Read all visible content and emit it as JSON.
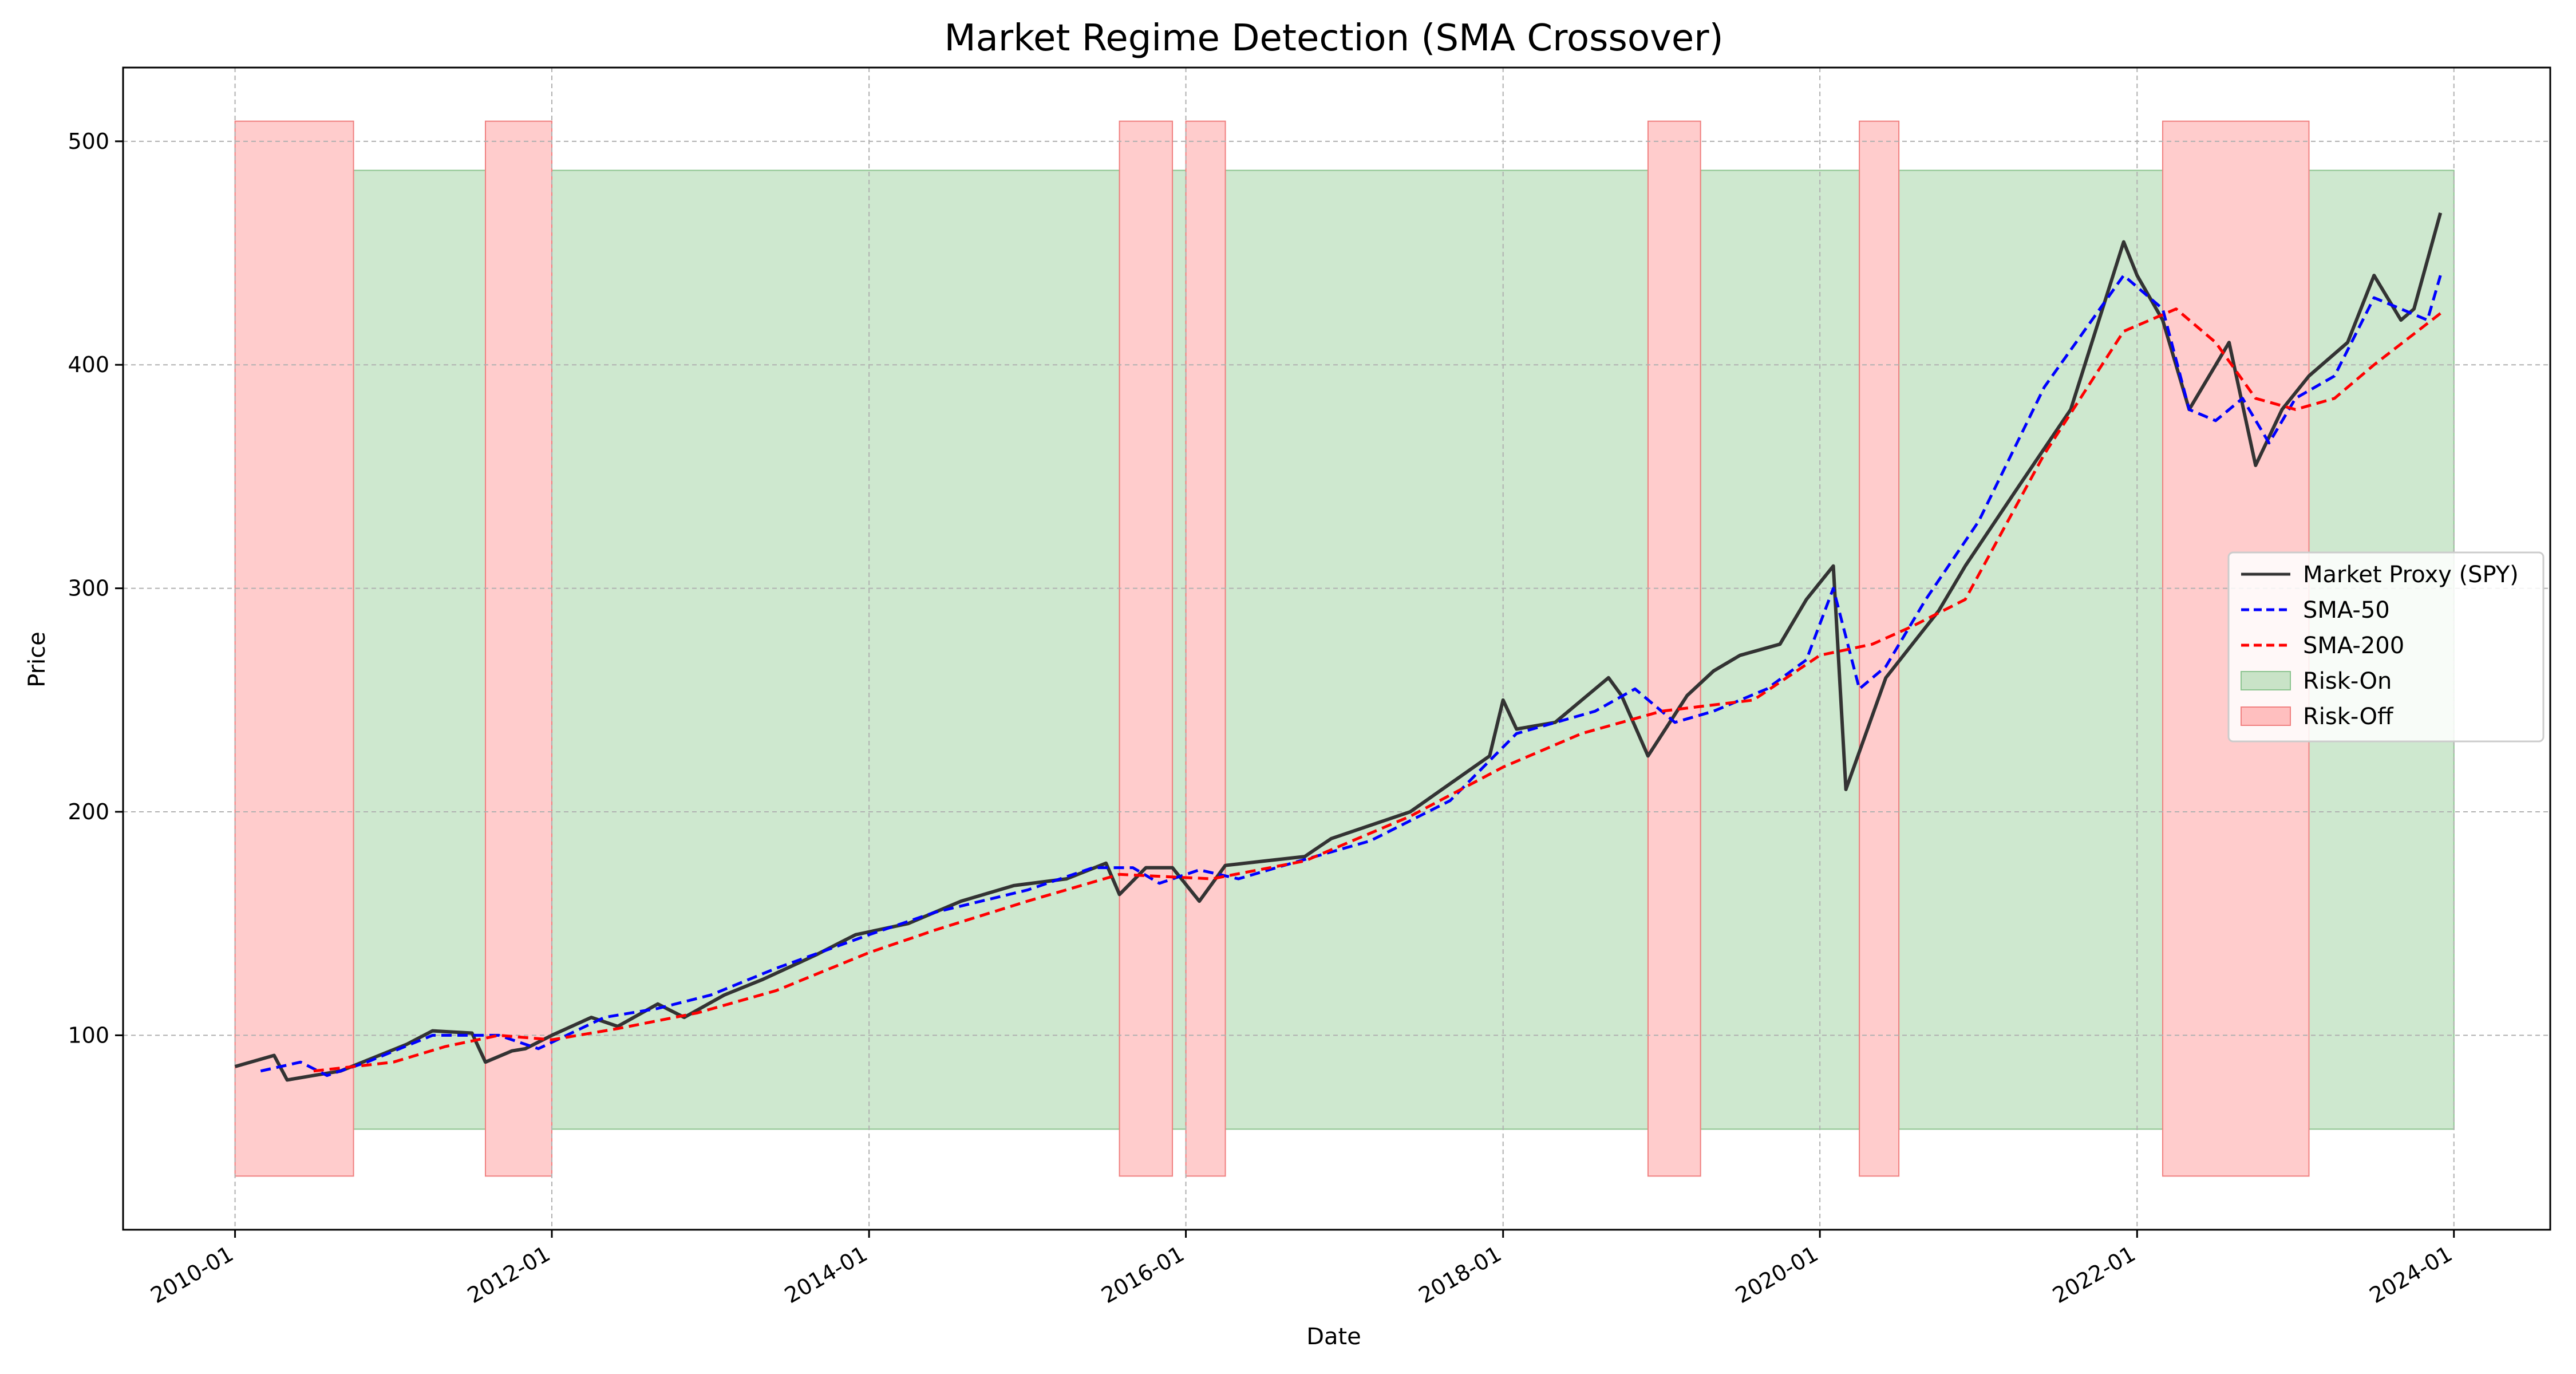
{
  "chart_data": {
    "type": "line",
    "title": "Market Regime Detection (SMA Crossover)",
    "xlabel": "Date",
    "ylabel": "Price",
    "x_type": "date",
    "xlim": [
      "2009-04-18",
      "2024-08-10"
    ],
    "ylim": [
      13,
      533
    ],
    "x_ticks": [
      "2010-01",
      "2012-01",
      "2014-01",
      "2016-01",
      "2018-01",
      "2020-01",
      "2022-01",
      "2024-01"
    ],
    "y_ticks": [
      100,
      200,
      300,
      400,
      500
    ],
    "grid": true,
    "legend_position": "center-right",
    "colors": {
      "price": "#333333",
      "sma50": "#0000ff",
      "sma200": "#ff0000",
      "risk_on": "#a5d6a7",
      "risk_off": "#ff9a9a"
    },
    "series": [
      {
        "name": "Market Proxy (SPY)",
        "style": "solid",
        "x": [
          "2010-01",
          "2010-04",
          "2010-05",
          "2010-07",
          "2010-09",
          "2011-02",
          "2011-04",
          "2011-07",
          "2011-08",
          "2011-10",
          "2011-11",
          "2012-01",
          "2012-04",
          "2012-06",
          "2012-09",
          "2012-11",
          "2013-02",
          "2013-05",
          "2013-09",
          "2013-12",
          "2014-04",
          "2014-08",
          "2014-12",
          "2015-04",
          "2015-07",
          "2015-08",
          "2015-10",
          "2015-12",
          "2016-02",
          "2016-04",
          "2016-07",
          "2016-10",
          "2016-12",
          "2017-06",
          "2017-12",
          "2018-01",
          "2018-02",
          "2018-05",
          "2018-09",
          "2018-10",
          "2018-12",
          "2019-03",
          "2019-05",
          "2019-07",
          "2019-10",
          "2019-12",
          "2020-02",
          "2020-03",
          "2020-06",
          "2020-08",
          "2020-10",
          "2020-12",
          "2021-04",
          "2021-08",
          "2021-12",
          "2022-01",
          "2022-03",
          "2022-05",
          "2022-08",
          "2022-10",
          "2022-12",
          "2023-02",
          "2023-05",
          "2023-07",
          "2023-09",
          "2023-10",
          "2023-12"
        ],
        "values": [
          86,
          91,
          80,
          82,
          84,
          96,
          102,
          101,
          88,
          93,
          94,
          100,
          108,
          104,
          114,
          108,
          118,
          125,
          136,
          145,
          150,
          160,
          167,
          170,
          177,
          163,
          175,
          175,
          160,
          176,
          178,
          180,
          188,
          200,
          225,
          250,
          237,
          240,
          260,
          252,
          225,
          252,
          263,
          270,
          275,
          295,
          310,
          210,
          260,
          275,
          290,
          310,
          345,
          380,
          455,
          440,
          420,
          380,
          410,
          355,
          380,
          395,
          410,
          440,
          420,
          425,
          468
        ]
      },
      {
        "name": "SMA-50",
        "style": "dashed",
        "x": [
          "2010-03",
          "2010-06",
          "2010-08",
          "2010-11",
          "2011-04",
          "2011-09",
          "2011-12",
          "2012-05",
          "2012-09",
          "2013-01",
          "2013-06",
          "2014-01",
          "2014-06",
          "2015-01",
          "2015-06",
          "2015-09",
          "2015-11",
          "2016-02",
          "2016-05",
          "2016-09",
          "2017-03",
          "2017-09",
          "2018-02",
          "2018-08",
          "2018-11",
          "2019-02",
          "2019-05",
          "2019-09",
          "2019-12",
          "2020-02",
          "2020-04",
          "2020-06",
          "2020-09",
          "2021-01",
          "2021-06",
          "2021-12",
          "2022-03",
          "2022-05",
          "2022-07",
          "2022-09",
          "2022-11",
          "2023-01",
          "2023-04",
          "2023-07",
          "2023-09",
          "2023-11",
          "2023-12"
        ],
        "values": [
          84,
          88,
          82,
          88,
          100,
          100,
          94,
          108,
          112,
          118,
          130,
          145,
          155,
          165,
          175,
          175,
          168,
          174,
          170,
          177,
          187,
          205,
          235,
          245,
          255,
          240,
          245,
          255,
          268,
          300,
          255,
          265,
          295,
          330,
          390,
          440,
          425,
          380,
          375,
          385,
          365,
          385,
          395,
          430,
          425,
          420,
          440
        ]
      },
      {
        "name": "SMA-200",
        "style": "dashed",
        "x": [
          "2010-07",
          "2011-01",
          "2011-05",
          "2011-09",
          "2012-01",
          "2012-06",
          "2012-12",
          "2013-06",
          "2014-01",
          "2014-06",
          "2015-01",
          "2015-08",
          "2016-03",
          "2016-10",
          "2017-06",
          "2018-01",
          "2018-07",
          "2019-01",
          "2019-08",
          "2020-01",
          "2020-05",
          "2020-08",
          "2020-12",
          "2021-06",
          "2021-12",
          "2022-04",
          "2022-07",
          "2022-10",
          "2023-01",
          "2023-04",
          "2023-07",
          "2023-12"
        ],
        "values": [
          84,
          88,
          95,
          100,
          98,
          103,
          110,
          120,
          137,
          147,
          160,
          172,
          170,
          178,
          198,
          220,
          235,
          245,
          250,
          270,
          275,
          283,
          295,
          360,
          415,
          425,
          410,
          385,
          380,
          385,
          400,
          423
        ]
      }
    ],
    "regimes": {
      "risk_on": {
        "name": "Risk-On",
        "y_range": [
          58,
          487
        ],
        "periods": [
          [
            "2010-10",
            "2011-08"
          ],
          [
            "2012-01",
            "2015-08"
          ],
          [
            "2015-12",
            "2016-01"
          ],
          [
            "2016-04",
            "2018-12"
          ],
          [
            "2019-04",
            "2020-04"
          ],
          [
            "2020-07",
            "2022-03"
          ],
          [
            "2023-02",
            "2024-01"
          ]
        ]
      },
      "risk_off": {
        "name": "Risk-Off",
        "y_range": [
          37,
          509
        ],
        "periods": [
          [
            "2010-01",
            "2010-10"
          ],
          [
            "2011-08",
            "2012-01"
          ],
          [
            "2015-08",
            "2015-12"
          ],
          [
            "2016-01",
            "2016-04"
          ],
          [
            "2018-12",
            "2019-04"
          ],
          [
            "2020-04",
            "2020-07"
          ],
          [
            "2022-03",
            "2023-02"
          ]
        ]
      }
    }
  }
}
